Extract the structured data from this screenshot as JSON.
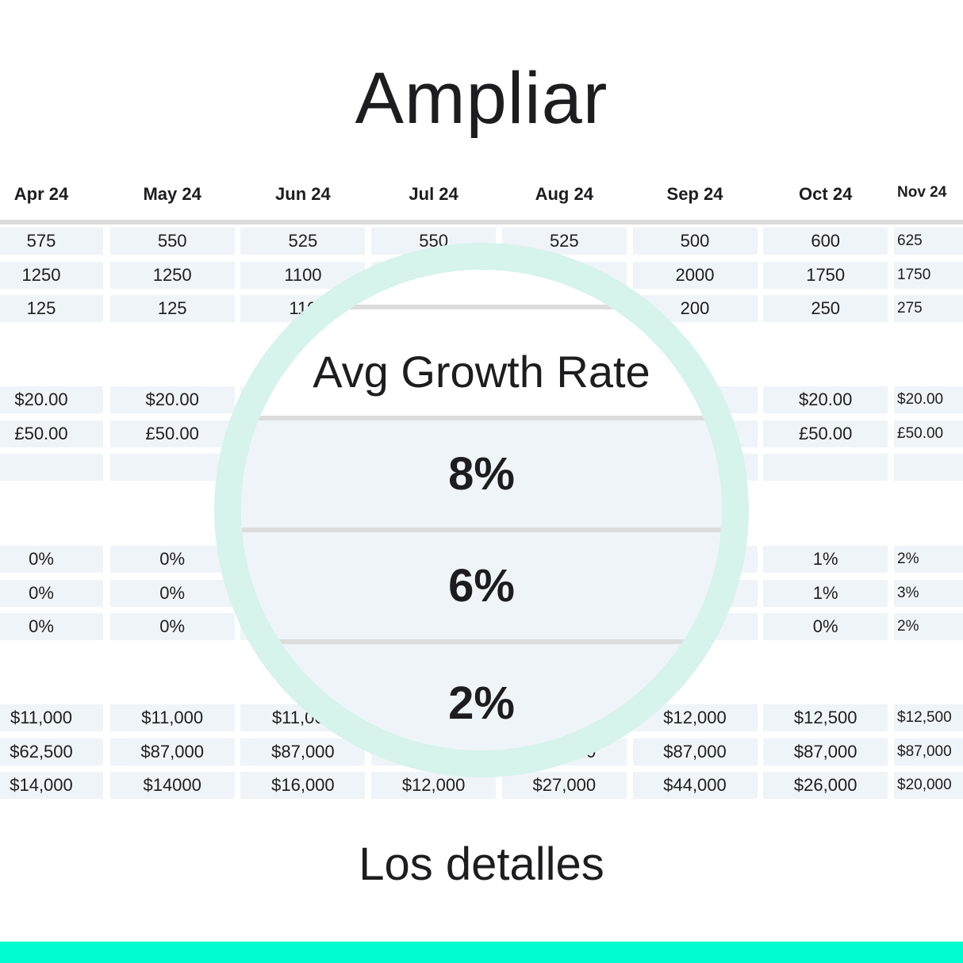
{
  "title": "Ampliar",
  "subtitle": "Los detalles",
  "table": {
    "headers": [
      "Apr 24",
      "May 24",
      "Jun 24",
      "Jul 24",
      "Aug 24",
      "Sep 24",
      "Oct 24",
      "Nov 24"
    ],
    "groups": [
      [
        [
          "575",
          "550",
          "525",
          "550",
          "525",
          "500",
          "600",
          "625"
        ],
        [
          "1250",
          "1250",
          "1100",
          "",
          "",
          "2000",
          "1750",
          "1750"
        ],
        [
          "125",
          "125",
          "110",
          "",
          "",
          "200",
          "250",
          "275"
        ]
      ],
      [
        [
          "$20.00",
          "$20.00",
          "",
          "",
          "",
          "",
          "$20.00",
          "$20.00"
        ],
        [
          "£50.00",
          "£50.00",
          "",
          "",
          "",
          "",
          "£50.00",
          "£50.00"
        ],
        [
          "",
          "",
          "",
          "",
          "",
          "",
          "",
          ""
        ]
      ],
      [
        [
          "0%",
          "0%",
          "",
          "",
          "",
          "",
          "1%",
          "2%"
        ],
        [
          "0%",
          "0%",
          "",
          "",
          "",
          "",
          "1%",
          "3%"
        ],
        [
          "0%",
          "0%",
          "",
          "",
          "",
          "",
          "0%",
          "2%"
        ]
      ],
      [
        [
          "$11,000",
          "$11,000",
          "$11,000",
          "",
          "",
          "$12,000",
          "$12,500",
          "$12,500"
        ],
        [
          "$62,500",
          "$87,000",
          "$87,000",
          "",
          "$87,000",
          "$87,000",
          "$87,000",
          "$87,000"
        ],
        [
          "$14,000",
          "$14000",
          "$16,000",
          "$12,000",
          "$27,000",
          "$44,000",
          "$26,000",
          "$20,000"
        ]
      ]
    ]
  },
  "magnifier": {
    "label": "Avg Growth Rate",
    "values": [
      "8%",
      "6%",
      "2%"
    ]
  },
  "colors": {
    "ring": "#d6f3ec",
    "cell": "#eff4f9",
    "accent_bar": "#00fdd0"
  }
}
